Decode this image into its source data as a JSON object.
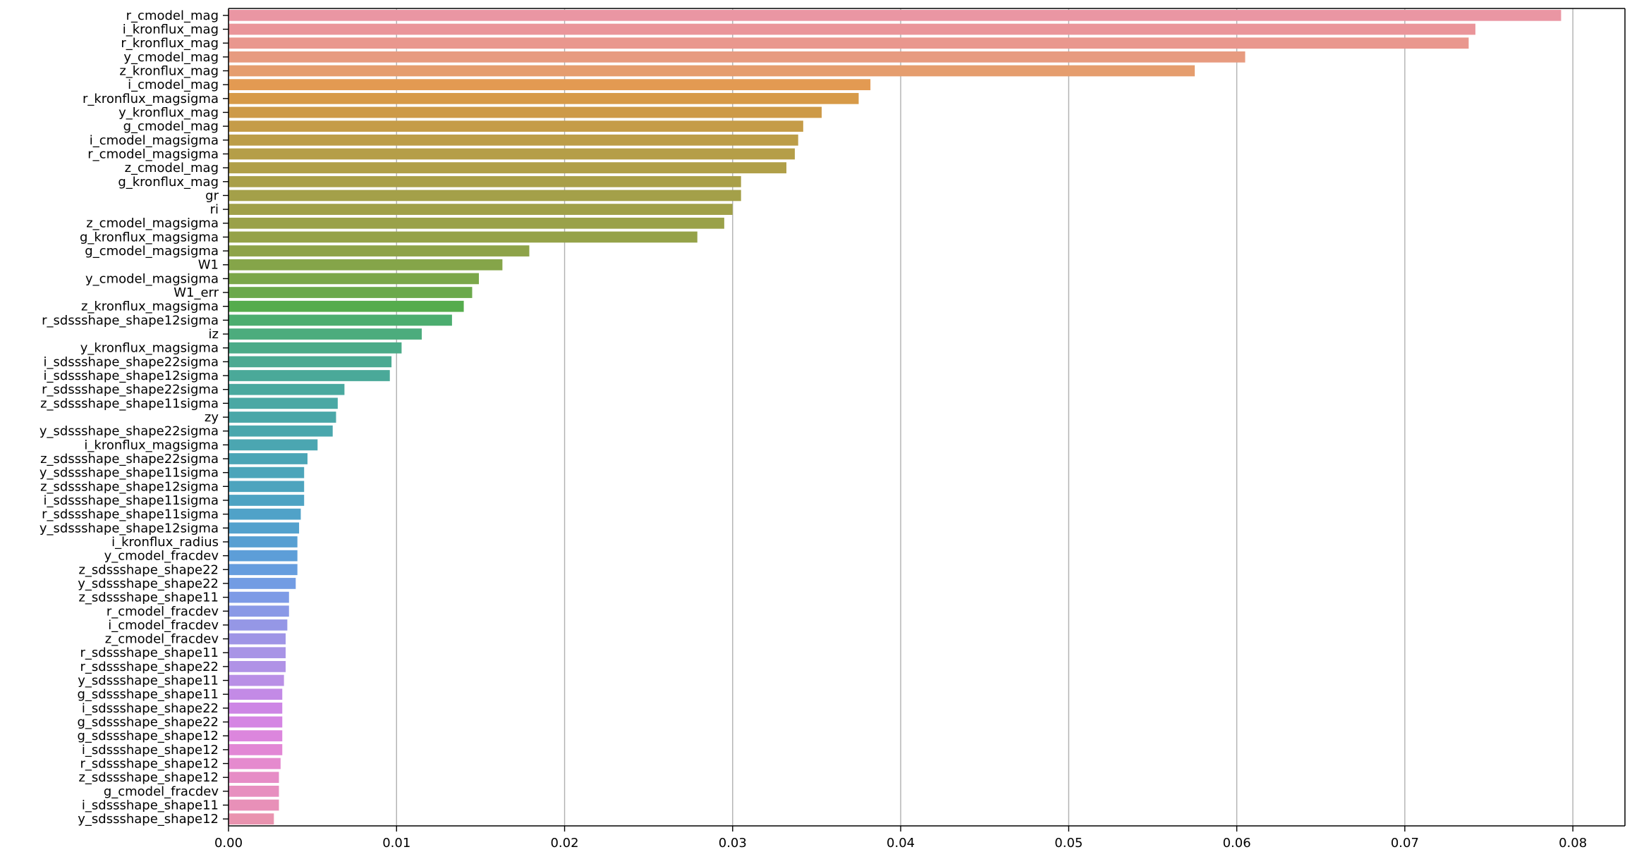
{
  "chart_data": {
    "type": "bar",
    "orientation": "horizontal",
    "title": "",
    "xlabel": "",
    "ylabel": "",
    "xlim": [
      0,
      0.0831
    ],
    "grid": "vertical",
    "xticks": [
      "0.00",
      "0.01",
      "0.02",
      "0.03",
      "0.04",
      "0.05",
      "0.06",
      "0.07",
      "0.08"
    ],
    "categories": [
      "r_cmodel_mag",
      "i_kronflux_mag",
      "r_kronflux_mag",
      "y_cmodel_mag",
      "z_kronflux_mag",
      "i_cmodel_mag",
      "r_kronflux_magsigma",
      "y_kronflux_mag",
      "g_cmodel_mag",
      "i_cmodel_magsigma",
      "r_cmodel_magsigma",
      "z_cmodel_mag",
      "g_kronflux_mag",
      "gr",
      "ri",
      "z_cmodel_magsigma",
      "g_kronflux_magsigma",
      "g_cmodel_magsigma",
      "W1",
      "y_cmodel_magsigma",
      "W1_err",
      "z_kronflux_magsigma",
      "r_sdssshape_shape12sigma",
      "iz",
      "y_kronflux_magsigma",
      "i_sdssshape_shape22sigma",
      "i_sdssshape_shape12sigma",
      "r_sdssshape_shape22sigma",
      "z_sdssshape_shape11sigma",
      "zy",
      "y_sdssshape_shape22sigma",
      "i_kronflux_magsigma",
      "z_sdssshape_shape22sigma",
      "y_sdssshape_shape11sigma",
      "z_sdssshape_shape12sigma",
      "i_sdssshape_shape11sigma",
      "r_sdssshape_shape11sigma",
      "y_sdssshape_shape12sigma",
      "i_kronflux_radius",
      "y_cmodel_fracdev",
      "z_sdssshape_shape22",
      "y_sdssshape_shape22",
      "z_sdssshape_shape11",
      "r_cmodel_fracdev",
      "i_cmodel_fracdev",
      "z_cmodel_fracdev",
      "r_sdssshape_shape11",
      "r_sdssshape_shape22",
      "y_sdssshape_shape11",
      "g_sdssshape_shape11",
      "i_sdssshape_shape22",
      "g_sdssshape_shape22",
      "g_sdssshape_shape12",
      "i_sdssshape_shape12",
      "r_sdssshape_shape12",
      "z_sdssshape_shape12",
      "g_cmodel_fracdev",
      "i_sdssshape_shape11",
      "y_sdssshape_shape12"
    ],
    "values": [
      0.0793,
      0.0742,
      0.0738,
      0.0605,
      0.0575,
      0.0382,
      0.0375,
      0.0353,
      0.0342,
      0.0339,
      0.0337,
      0.0332,
      0.0305,
      0.0305,
      0.03,
      0.0295,
      0.0279,
      0.0179,
      0.0163,
      0.0149,
      0.0145,
      0.014,
      0.0133,
      0.0115,
      0.0103,
      0.0097,
      0.0096,
      0.0069,
      0.0065,
      0.0064,
      0.0062,
      0.0053,
      0.0047,
      0.0045,
      0.0045,
      0.0045,
      0.0043,
      0.0042,
      0.0041,
      0.0041,
      0.0041,
      0.004,
      0.0036,
      0.0036,
      0.0035,
      0.0034,
      0.0034,
      0.0034,
      0.0033,
      0.0032,
      0.0032,
      0.0032,
      0.0032,
      0.0032,
      0.0031,
      0.003,
      0.003,
      0.003,
      0.0027
    ],
    "colors": [
      "#ea96a3",
      "#ea959a",
      "#e9978e",
      "#e79b80",
      "#e59d6e",
      "#e39a52",
      "#d79a48",
      "#cd9a48",
      "#c59c48",
      "#bc9d48",
      "#b59e48",
      "#b09f48",
      "#a99f48",
      "#a4a049",
      "#a0a049",
      "#9aa149",
      "#95a249",
      "#8ea349",
      "#85a549",
      "#7ba74a",
      "#6ba94b",
      "#55ac4d",
      "#4cad6f",
      "#4cac7d",
      "#4bab88",
      "#4baa92",
      "#4aa999",
      "#4aa99f",
      "#4aa8a4",
      "#4aa7a8",
      "#4aa7ad",
      "#4ba6b1",
      "#4ba5b6",
      "#4ca5ba",
      "#4da4be",
      "#4ea3c3",
      "#50a2c8",
      "#53a1cd",
      "#579fd2",
      "#5d9ed8",
      "#669dde",
      "#729ce3",
      "#7e9be6",
      "#8a99e6",
      "#9597e6",
      "#9f95e6",
      "#a894e6",
      "#b092e6",
      "#b98fe6",
      "#c38ae6",
      "#cd86e5",
      "#d585e3",
      "#dc86dd",
      "#e287d5",
      "#e58ace",
      "#e68dc6",
      "#e78fbf",
      "#e890b8",
      "#e993af"
    ]
  }
}
